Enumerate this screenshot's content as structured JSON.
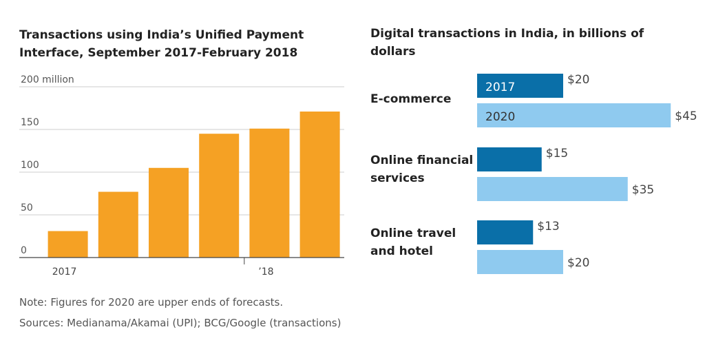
{
  "chart_data": [
    {
      "type": "bar",
      "title": "Transactions using India’s Unified Payment Interface, September 2017-February 2018",
      "categories": [
        "2017",
        null,
        null,
        null,
        "’18",
        null
      ],
      "values": [
        31,
        77,
        105,
        145,
        151,
        171
      ],
      "color": "#f5a124",
      "ylim": [
        0,
        200
      ],
      "yticks": [
        0,
        50,
        100,
        150,
        {
          "value": 200,
          "label": "200 million"
        }
      ],
      "grid": true
    },
    {
      "type": "barh",
      "title": "Digital transactions in India, in billions of dollars",
      "categories": [
        "E-commerce",
        "Online financial services",
        "Online travel and hotel"
      ],
      "series": [
        {
          "name": "2017",
          "color": "#0a6fa8",
          "values": [
            20,
            15,
            13
          ],
          "value_labels": [
            "$20",
            "$15",
            "$13"
          ]
        },
        {
          "name": "2020",
          "color": "#8fcaef",
          "values": [
            45,
            35,
            20
          ],
          "value_labels": [
            "$45",
            "$35",
            "$20"
          ]
        }
      ]
    }
  ],
  "note": "Note: Figures for 2020 are upper ends of forecasts.",
  "sources": "Sources: Medianama/Akamai (UPI); BCG/Google (transactions)"
}
